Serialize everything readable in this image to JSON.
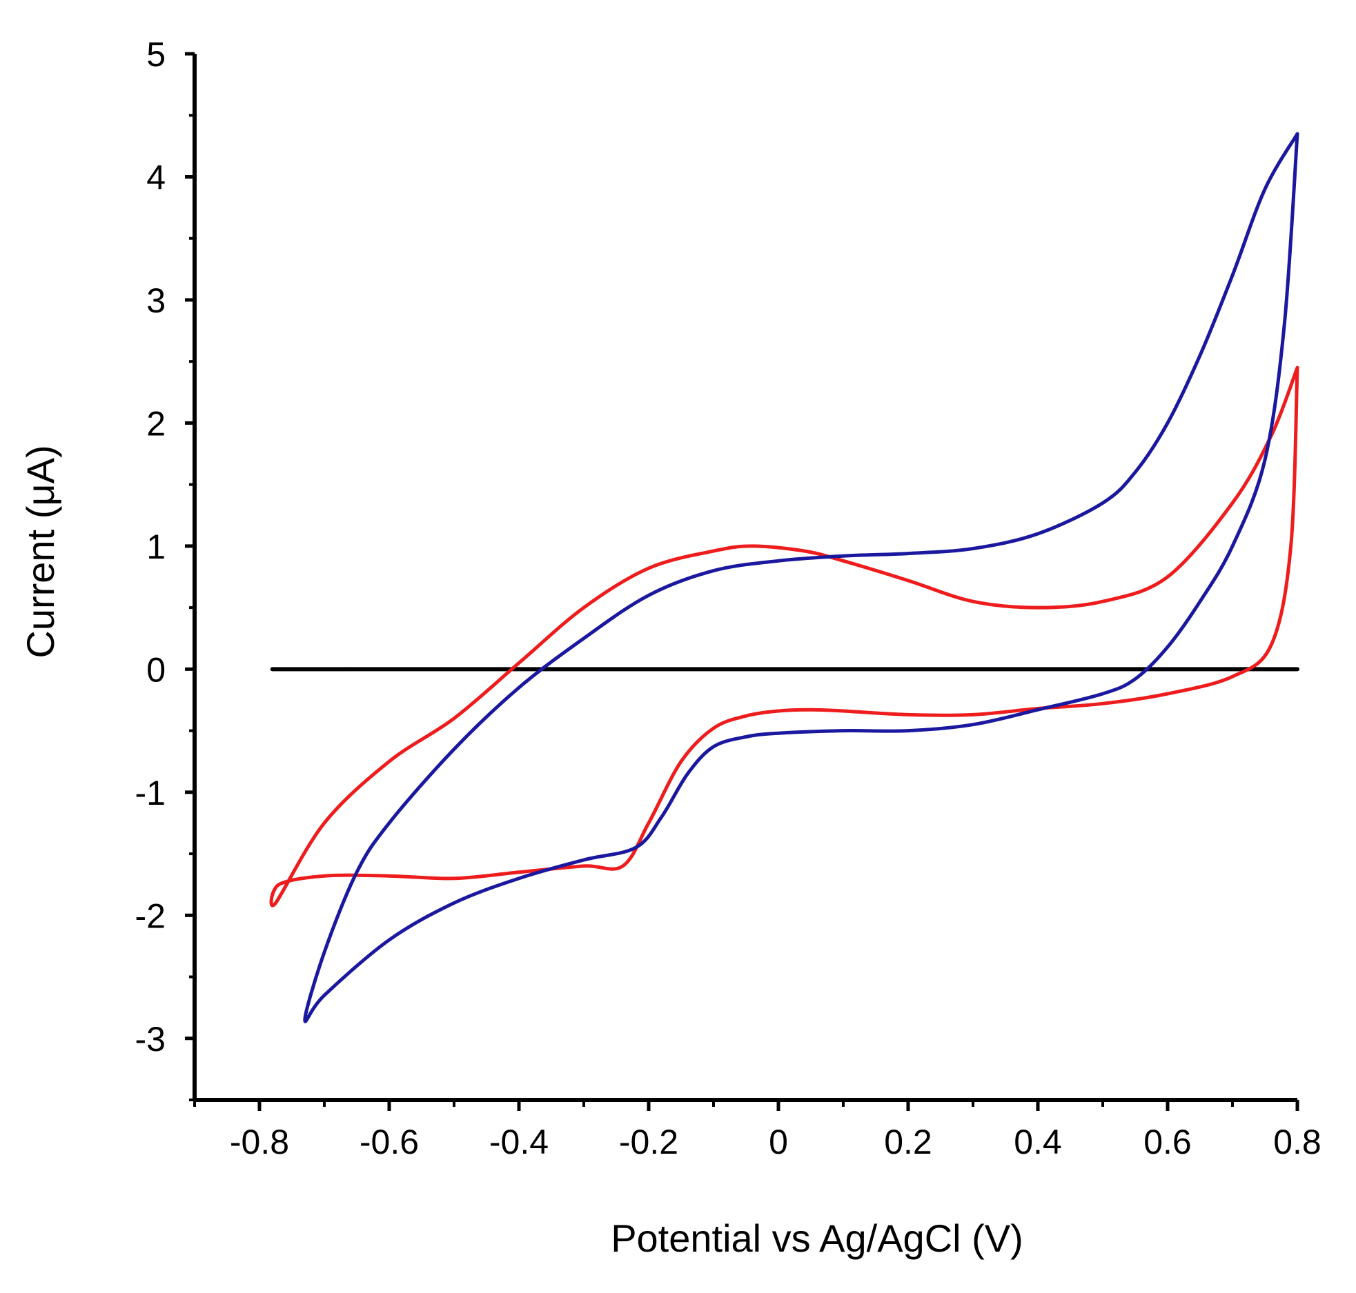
{
  "chart_data": {
    "type": "line",
    "title": "",
    "xlabel": "Potential vs Ag/AgCl  (V)",
    "ylabel": "Current (μA)",
    "xlim": [
      -0.9,
      0.8
    ],
    "ylim": [
      -3.5,
      5
    ],
    "x_ticks": [
      -0.8,
      -0.6,
      -0.4,
      -0.2,
      0,
      0.2,
      0.4,
      0.6,
      0.8
    ],
    "x_tick_labels": [
      "-0.8",
      "-0.6",
      "-0.4",
      "-0.2",
      "0",
      "0.2",
      "0.4",
      "0.6",
      "0.8"
    ],
    "y_ticks": [
      -3,
      -2,
      -1,
      0,
      1,
      2,
      3,
      4,
      5
    ],
    "y_tick_labels": [
      "-3",
      "-2",
      "-1",
      "0",
      "1",
      "2",
      "3",
      "4",
      "5"
    ],
    "grid": false,
    "legend": "none",
    "series": [
      {
        "name": "baseline",
        "color": "#000000",
        "x": [
          -0.78,
          0.8
        ],
        "y": [
          0,
          0
        ]
      },
      {
        "name": "red",
        "color": "#ee1c1c",
        "x": [
          0.8,
          0.76,
          0.7,
          0.6,
          0.5,
          0.4,
          0.3,
          0.2,
          0.1,
          0.04,
          -0.04,
          -0.1,
          -0.2,
          -0.3,
          -0.4,
          -0.5,
          -0.6,
          -0.7,
          -0.775,
          -0.77,
          -0.7,
          -0.6,
          -0.5,
          -0.4,
          -0.3,
          -0.24,
          -0.2,
          -0.15,
          -0.1,
          -0.05,
          0.0,
          0.05,
          0.1,
          0.2,
          0.3,
          0.4,
          0.5,
          0.6,
          0.7,
          0.76,
          0.79,
          0.8
        ],
        "y": [
          2.45,
          1.9,
          1.35,
          0.75,
          0.55,
          0.5,
          0.55,
          0.72,
          0.88,
          0.96,
          1.0,
          0.96,
          0.82,
          0.5,
          0.05,
          -0.4,
          -0.75,
          -1.25,
          -1.9,
          -1.75,
          -1.68,
          -1.68,
          -1.7,
          -1.65,
          -1.6,
          -1.6,
          -1.25,
          -0.75,
          -0.48,
          -0.38,
          -0.34,
          -0.33,
          -0.34,
          -0.37,
          -0.37,
          -0.32,
          -0.28,
          -0.2,
          -0.06,
          0.2,
          1.0,
          2.45
        ]
      },
      {
        "name": "blue",
        "color": "#1a189e",
        "x": [
          0.8,
          0.75,
          0.7,
          0.65,
          0.6,
          0.55,
          0.5,
          0.4,
          0.3,
          0.2,
          0.1,
          0.0,
          -0.1,
          -0.2,
          -0.3,
          -0.4,
          -0.5,
          -0.6,
          -0.65,
          -0.7,
          -0.73,
          -0.7,
          -0.6,
          -0.5,
          -0.4,
          -0.3,
          -0.22,
          -0.18,
          -0.14,
          -0.1,
          -0.05,
          0.0,
          0.1,
          0.2,
          0.3,
          0.4,
          0.5,
          0.55,
          0.6,
          0.65,
          0.7,
          0.75,
          0.78,
          0.8
        ],
        "y": [
          4.35,
          3.9,
          3.2,
          2.55,
          2.0,
          1.6,
          1.35,
          1.1,
          0.98,
          0.94,
          0.92,
          0.88,
          0.8,
          0.6,
          0.25,
          -0.15,
          -0.65,
          -1.25,
          -1.65,
          -2.3,
          -2.85,
          -2.65,
          -2.2,
          -1.9,
          -1.7,
          -1.55,
          -1.45,
          -1.2,
          -0.85,
          -0.63,
          -0.55,
          -0.52,
          -0.5,
          -0.5,
          -0.45,
          -0.33,
          -0.2,
          -0.08,
          0.18,
          0.55,
          1.0,
          1.7,
          2.8,
          4.35
        ]
      }
    ]
  }
}
